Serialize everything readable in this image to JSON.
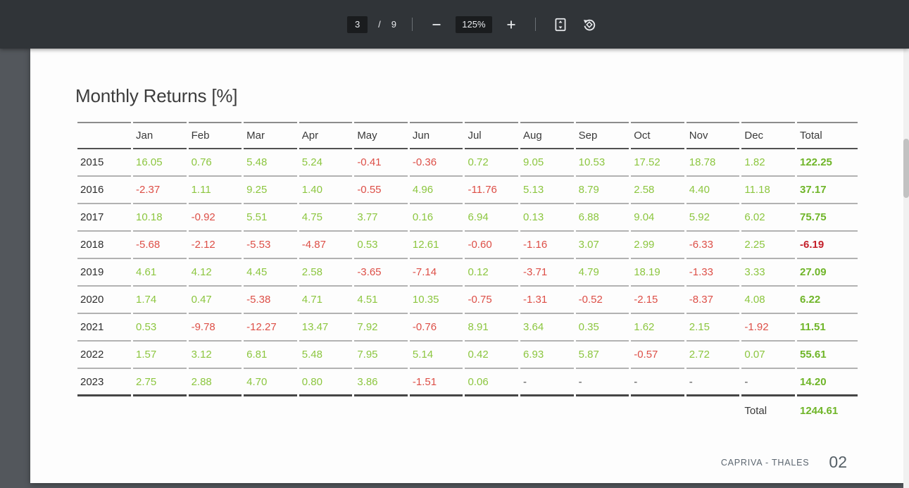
{
  "toolbar": {
    "page_input": "3",
    "page_divider": "/",
    "total_pages": "9",
    "zoom_value": "125%",
    "icons": {
      "zoom_out": "minus-icon",
      "zoom_in": "plus-icon",
      "fit_page": "fit-to-page-icon",
      "rotate": "rotate-counterclockwise-icon"
    }
  },
  "page": {
    "title": "Monthly Returns [%]",
    "footer": {
      "brand": "CAPRIVA - THALES",
      "page_number": "02"
    }
  },
  "chart_data": {
    "type": "table",
    "title": "Monthly Returns [%]",
    "columns": [
      "",
      "Jan",
      "Feb",
      "Mar",
      "Apr",
      "May",
      "Jun",
      "Jul",
      "Aug",
      "Sep",
      "Oct",
      "Nov",
      "Dec",
      "Total"
    ],
    "rows": [
      {
        "year": "2015",
        "values": [
          "16.05",
          "0.76",
          "5.48",
          "5.24",
          "-0.41",
          "-0.36",
          "0.72",
          "9.05",
          "10.53",
          "17.52",
          "18.78",
          "1.82"
        ],
        "total": "122.25"
      },
      {
        "year": "2016",
        "values": [
          "-2.37",
          "1.11",
          "9.25",
          "1.40",
          "-0.55",
          "4.96",
          "-11.76",
          "5.13",
          "8.79",
          "2.58",
          "4.40",
          "11.18"
        ],
        "total": "37.17"
      },
      {
        "year": "2017",
        "values": [
          "10.18",
          "-0.92",
          "5.51",
          "4.75",
          "3.77",
          "0.16",
          "6.94",
          "0.13",
          "6.88",
          "9.04",
          "5.92",
          "6.02"
        ],
        "total": "75.75"
      },
      {
        "year": "2018",
        "values": [
          "-5.68",
          "-2.12",
          "-5.53",
          "-4.87",
          "0.53",
          "12.61",
          "-0.60",
          "-1.16",
          "3.07",
          "2.99",
          "-6.33",
          "2.25"
        ],
        "total": "-6.19"
      },
      {
        "year": "2019",
        "values": [
          "4.61",
          "4.12",
          "4.45",
          "2.58",
          "-3.65",
          "-7.14",
          "0.12",
          "-3.71",
          "4.79",
          "18.19",
          "-1.33",
          "3.33"
        ],
        "total": "27.09"
      },
      {
        "year": "2020",
        "values": [
          "1.74",
          "0.47",
          "-5.38",
          "4.71",
          "4.51",
          "10.35",
          "-0.75",
          "-1.31",
          "-0.52",
          "-2.15",
          "-8.37",
          "4.08"
        ],
        "total": "6.22"
      },
      {
        "year": "2021",
        "values": [
          "0.53",
          "-9.78",
          "-12.27",
          "13.47",
          "7.92",
          "-0.76",
          "8.91",
          "3.64",
          "0.35",
          "1.62",
          "2.15",
          "-1.92"
        ],
        "total": "11.51"
      },
      {
        "year": "2022",
        "values": [
          "1.57",
          "3.12",
          "6.81",
          "5.48",
          "7.95",
          "5.14",
          "0.42",
          "6.93",
          "5.87",
          "-0.57",
          "2.72",
          "0.07"
        ],
        "total": "55.61"
      },
      {
        "year": "2023",
        "values": [
          "2.75",
          "2.88",
          "4.70",
          "0.80",
          "3.86",
          "-1.51",
          "0.06",
          "-",
          "-",
          "-",
          "-",
          "-"
        ],
        "total": "14.20"
      }
    ],
    "grand_total_label": "Total",
    "grand_total_value": "1244.61"
  },
  "colors": {
    "positive": "#8cc63f",
    "positive_total": "#6fb528",
    "negative": "#dd4f47",
    "negative_total": "#c4202a",
    "toolbar_bg": "#303438",
    "viewer_bg": "#53575c"
  }
}
